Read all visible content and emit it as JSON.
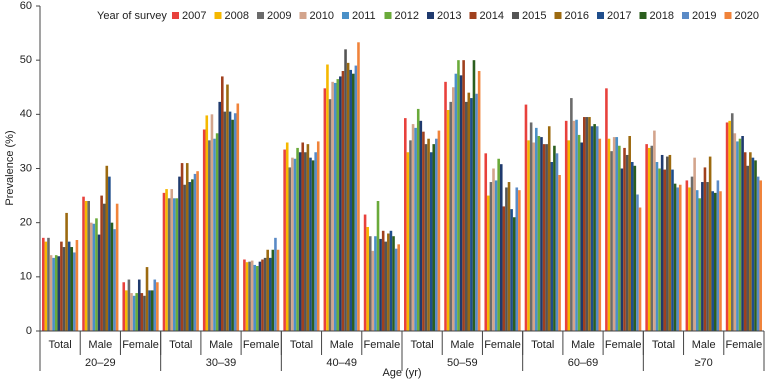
{
  "chart_data": {
    "type": "bar",
    "y_label": "Prevalence (%)",
    "x_label": "Age (yr)",
    "legend_title": "Year of survey",
    "categories": [
      "Total",
      "Male",
      "Female",
      "Total",
      "Male",
      "Female",
      "Total",
      "Male",
      "Female",
      "Total",
      "Male",
      "Female",
      "Total",
      "Male",
      "Female",
      "Total",
      "Male",
      "Female"
    ],
    "category_groups": [
      "20–29",
      "30–39",
      "40–49",
      "50–59",
      "60–69",
      "≥70"
    ],
    "ylim": [
      0,
      60
    ],
    "yticks": [
      0,
      10,
      20,
      30,
      40,
      50,
      60
    ],
    "series": [
      {
        "name": "2007",
        "color": "#e8413c",
        "values": [
          17.2,
          24.8,
          9,
          25.5,
          37.2,
          13.2,
          33.5,
          44.8,
          21.5,
          39.3,
          46,
          32.8,
          41.8,
          38.8,
          44.8,
          34.5,
          27.8,
          38.5
        ]
      },
      {
        "name": "2008",
        "color": "#f5b800",
        "values": [
          16.5,
          24,
          7.5,
          26.2,
          39.8,
          12.7,
          34.8,
          49.2,
          19.2,
          33,
          40.8,
          25,
          35.2,
          35.2,
          35.5,
          33.8,
          26.5,
          38.8
        ]
      },
      {
        "name": "2009",
        "color": "#6b6b6b",
        "values": [
          17.2,
          24,
          9.5,
          24.5,
          35.2,
          12.8,
          30.2,
          42.8,
          17.5,
          35.2,
          42.3,
          27.5,
          38.5,
          43,
          33.2,
          34.2,
          28.5,
          40.2
        ]
      },
      {
        "name": "2010",
        "color": "#d3a48c",
        "values": [
          14,
          20,
          7,
          26.2,
          40,
          13,
          32,
          46,
          14.8,
          38.2,
          45,
          30,
          34.8,
          38.8,
          35.8,
          37,
          32,
          36.5
        ]
      },
      {
        "name": "2011",
        "color": "#4a90c8",
        "values": [
          13.5,
          19.8,
          6.5,
          24.5,
          35.5,
          12.2,
          31.8,
          45.8,
          17.5,
          37.5,
          47.5,
          27.8,
          37.5,
          39,
          35.8,
          31.2,
          26,
          35
        ]
      },
      {
        "name": "2012",
        "color": "#6aaa3a",
        "values": [
          14,
          20.8,
          7,
          24.5,
          36.5,
          12,
          33.8,
          46.5,
          24,
          41,
          50,
          31.8,
          36,
          36.2,
          34.2,
          30,
          24.5,
          35.5
        ]
      },
      {
        "name": "2013",
        "color": "#1f3a6e",
        "values": [
          13.8,
          17.8,
          9.5,
          28.5,
          42.3,
          12.8,
          33,
          47,
          17,
          38.8,
          47.2,
          30.8,
          35.8,
          34.8,
          30,
          32.5,
          27.5,
          36
        ]
      },
      {
        "name": "2014",
        "color": "#a0401e",
        "values": [
          16.5,
          25,
          7,
          31,
          47,
          13.2,
          34.8,
          48,
          18.5,
          36.8,
          50,
          23,
          34.5,
          39.5,
          33.8,
          29.8,
          30.2,
          33
        ]
      },
      {
        "name": "2015",
        "color": "#555555",
        "values": [
          15.5,
          23.5,
          6.5,
          27,
          40.5,
          13.5,
          33,
          52,
          16.5,
          34.5,
          42.3,
          26.5,
          34.5,
          39.5,
          32.5,
          32.2,
          27.5,
          30.5
        ]
      },
      {
        "name": "2016",
        "color": "#9c6a10",
        "values": [
          21.8,
          30.5,
          11.8,
          31,
          45.5,
          15,
          34.5,
          49.5,
          18,
          35.5,
          44,
          27.5,
          37.8,
          39.5,
          36,
          32.5,
          32.2,
          33
        ]
      },
      {
        "name": "2017",
        "color": "#1f4e8c",
        "values": [
          16.5,
          28.5,
          7.5,
          27.5,
          40.5,
          13.5,
          32,
          48.2,
          18.5,
          33,
          43,
          22.5,
          31.2,
          37.8,
          31.2,
          29.8,
          25.8,
          32
        ]
      },
      {
        "name": "2018",
        "color": "#2b5e1e",
        "values": [
          15.5,
          20,
          7.5,
          28,
          39,
          15,
          31.5,
          47.5,
          17.5,
          34.5,
          50,
          21,
          34.2,
          38.2,
          30.5,
          27.2,
          25.5,
          31.5
        ]
      },
      {
        "name": "2019",
        "color": "#5a8ac6",
        "values": [
          14.5,
          18.8,
          9.5,
          29,
          40.2,
          17.2,
          33,
          49,
          15.2,
          35.5,
          43.8,
          26.5,
          32.8,
          37.8,
          25.2,
          26.5,
          27.8,
          28.5
        ]
      },
      {
        "name": "2020",
        "color": "#f0833a",
        "values": [
          16.8,
          23.5,
          9,
          29.5,
          42,
          15,
          35,
          53.3,
          16,
          37,
          48,
          26,
          28.8,
          35.5,
          22.8,
          27,
          25.8,
          27.8
        ]
      }
    ]
  }
}
